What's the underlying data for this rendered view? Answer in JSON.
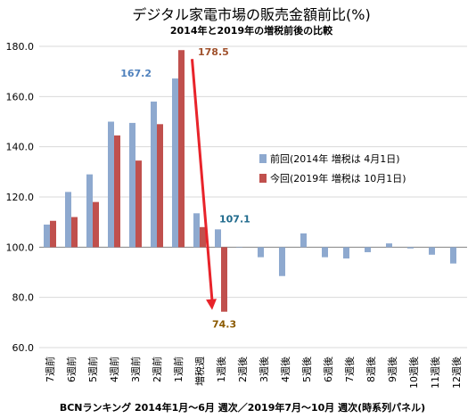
{
  "chart_data": {
    "type": "bar",
    "title": "デジタル家電市場の販売金額前比(%)",
    "subtitle": "2014年と2019年の増税前後の比較",
    "footer": "BCNランキング 2014年1月～6月 週次／2019年7月～10月 週次(時系列パネル)",
    "ylim": [
      60,
      180
    ],
    "y_ticks": [
      "60.0",
      "80.0",
      "100.0",
      "120.0",
      "140.0",
      "160.0",
      "180.0"
    ],
    "baseline": 100,
    "grid": true,
    "legend_position": "right",
    "categories": [
      "7週前",
      "6週前",
      "5週前",
      "4週前",
      "3週前",
      "2週前",
      "1週前",
      "増税週",
      "1週後",
      "2週後",
      "3週後",
      "4週後",
      "5週後",
      "6週後",
      "7週後",
      "8週後",
      "9週後",
      "10週後",
      "11週後",
      "12週後"
    ],
    "series": [
      {
        "name": "前回(2014年 増税は 4月1日)",
        "color": "#8EA9CF",
        "values": [
          109.0,
          122.0,
          129.0,
          150.0,
          149.5,
          158.0,
          167.2,
          113.5,
          107.1,
          100.0,
          96.0,
          88.5,
          105.5,
          96.0,
          95.5,
          98.0,
          101.5,
          99.5,
          97.0,
          93.5
        ]
      },
      {
        "name": "今回(2019年 増税は 10月1日)",
        "color": "#C0504D",
        "values": [
          110.5,
          112.0,
          118.0,
          144.5,
          134.5,
          149.0,
          178.5,
          108.0,
          74.3,
          null,
          null,
          null,
          null,
          null,
          null,
          null,
          null,
          null,
          null,
          null
        ]
      }
    ],
    "annotations": [
      {
        "text": "167.2",
        "color": "#4F81BD"
      },
      {
        "text": "178.5",
        "color": "#A0522D"
      },
      {
        "text": "107.1",
        "color": "#1F6A8C"
      },
      {
        "text": "74.3",
        "color": "#8B5A00"
      }
    ],
    "arrow_color": "#E8232A"
  }
}
